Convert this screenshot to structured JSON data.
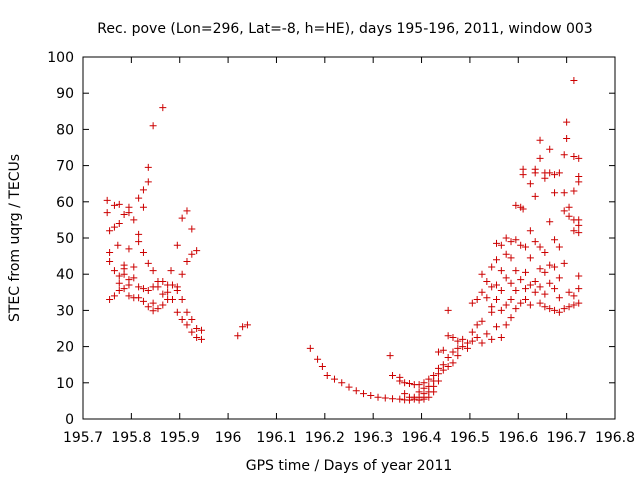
{
  "chart_data": {
    "type": "scatter",
    "title": "Rec. pove (Lon=296, Lat=-8, h=HE), days 195-196, 2011, window 003",
    "xlabel": "GPS time / Days of year 2011",
    "ylabel": "STEC from uqrg / TECUs",
    "xlim": [
      195.7,
      196.8
    ],
    "ylim": [
      0,
      100
    ],
    "xticks": [
      "195.7",
      "195.8",
      "195.9",
      "196",
      "196.1",
      "196.2",
      "196.3",
      "196.4",
      "196.5",
      "196.6",
      "196.7",
      "196.8"
    ],
    "xtick_values": [
      195.7,
      195.8,
      195.9,
      196.0,
      196.1,
      196.2,
      196.3,
      196.4,
      196.5,
      196.6,
      196.7,
      196.8
    ],
    "yticks": [
      "0",
      "10",
      "20",
      "30",
      "40",
      "50",
      "60",
      "70",
      "80",
      "90",
      "100"
    ],
    "ytick_values": [
      0,
      10,
      20,
      30,
      40,
      50,
      60,
      70,
      80,
      90,
      100
    ],
    "marker": "+",
    "color": "#cc0000",
    "series": [
      {
        "name": "STEC",
        "points": [
          [
            195.75,
            60.4
          ],
          [
            195.75,
            57.0
          ],
          [
            195.755,
            52.0
          ],
          [
            195.755,
            46.0
          ],
          [
            195.755,
            43.5
          ],
          [
            195.755,
            33.0
          ],
          [
            195.765,
            59.0
          ],
          [
            195.765,
            53.0
          ],
          [
            195.765,
            41.0
          ],
          [
            195.765,
            34.0
          ],
          [
            195.772,
            48.0
          ],
          [
            195.775,
            59.3
          ],
          [
            195.775,
            54.0
          ],
          [
            195.775,
            39.5
          ],
          [
            195.775,
            37.5
          ],
          [
            195.775,
            35.5
          ],
          [
            195.785,
            56.5
          ],
          [
            195.785,
            42.5
          ],
          [
            195.785,
            41.5
          ],
          [
            195.785,
            40.0
          ],
          [
            195.785,
            36.0
          ],
          [
            195.795,
            58.5
          ],
          [
            195.795,
            57.0
          ],
          [
            195.795,
            47.0
          ],
          [
            195.795,
            38.5
          ],
          [
            195.795,
            37.0
          ],
          [
            195.795,
            34.0
          ],
          [
            195.805,
            55.0
          ],
          [
            195.805,
            42.0
          ],
          [
            195.805,
            39.0
          ],
          [
            195.805,
            33.5
          ],
          [
            195.815,
            61.0
          ],
          [
            195.815,
            51.0
          ],
          [
            195.815,
            49.0
          ],
          [
            195.815,
            36.5
          ],
          [
            195.815,
            33.5
          ],
          [
            195.825,
            63.3
          ],
          [
            195.825,
            58.5
          ],
          [
            195.825,
            46.0
          ],
          [
            195.825,
            36.0
          ],
          [
            195.825,
            32.5
          ],
          [
            195.835,
            69.5
          ],
          [
            195.835,
            65.5
          ],
          [
            195.835,
            43.0
          ],
          [
            195.835,
            35.5
          ],
          [
            195.835,
            31.0
          ],
          [
            195.845,
            81.0
          ],
          [
            195.845,
            41.0
          ],
          [
            195.845,
            36.5
          ],
          [
            195.845,
            32.0
          ],
          [
            195.845,
            29.9
          ],
          [
            195.855,
            38.0
          ],
          [
            195.855,
            36.5
          ],
          [
            195.855,
            30.5
          ],
          [
            195.865,
            86.0
          ],
          [
            195.865,
            38.0
          ],
          [
            195.865,
            34.5
          ],
          [
            195.865,
            31.5
          ],
          [
            195.875,
            37.0
          ],
          [
            195.875,
            35.0
          ],
          [
            195.875,
            33.0
          ],
          [
            195.882,
            41.0
          ],
          [
            195.885,
            37.0
          ],
          [
            195.885,
            33.0
          ],
          [
            195.895,
            48.0
          ],
          [
            195.895,
            36.5
          ],
          [
            195.895,
            35.5
          ],
          [
            195.895,
            29.5
          ],
          [
            195.905,
            55.5
          ],
          [
            195.905,
            40.0
          ],
          [
            195.905,
            33.0
          ],
          [
            195.905,
            27.5
          ],
          [
            195.915,
            57.5
          ],
          [
            195.915,
            43.5
          ],
          [
            195.915,
            29.5
          ],
          [
            195.915,
            26.0
          ],
          [
            195.925,
            52.5
          ],
          [
            195.925,
            45.5
          ],
          [
            195.925,
            27.5
          ],
          [
            195.925,
            24.0
          ],
          [
            195.935,
            46.5
          ],
          [
            195.935,
            25.0
          ],
          [
            195.935,
            22.5
          ],
          [
            195.945,
            24.5
          ],
          [
            195.945,
            22.0
          ],
          [
            196.02,
            23.0
          ],
          [
            196.03,
            25.5
          ],
          [
            196.04,
            26.0
          ],
          [
            196.17,
            19.5
          ],
          [
            196.185,
            16.5
          ],
          [
            196.195,
            14.5
          ],
          [
            196.205,
            12.0
          ],
          [
            196.22,
            11.0
          ],
          [
            196.235,
            10.0
          ],
          [
            196.25,
            8.8
          ],
          [
            196.265,
            7.8
          ],
          [
            196.28,
            7.0
          ],
          [
            196.295,
            6.5
          ],
          [
            196.31,
            6.0
          ],
          [
            196.325,
            5.8
          ],
          [
            196.34,
            5.6
          ],
          [
            196.335,
            17.5
          ],
          [
            196.34,
            12.0
          ],
          [
            196.355,
            11.5
          ],
          [
            196.355,
            10.5
          ],
          [
            196.355,
            5.5
          ],
          [
            196.365,
            10.0
          ],
          [
            196.365,
            7.0
          ],
          [
            196.365,
            5.3
          ],
          [
            196.375,
            9.8
          ],
          [
            196.375,
            6.0
          ],
          [
            196.375,
            5.2
          ],
          [
            196.385,
            9.5
          ],
          [
            196.385,
            6.0
          ],
          [
            196.385,
            5.5
          ],
          [
            196.395,
            9.5
          ],
          [
            196.395,
            7.5
          ],
          [
            196.395,
            6.0
          ],
          [
            196.395,
            5.2
          ],
          [
            196.405,
            10.0
          ],
          [
            196.405,
            8.5
          ],
          [
            196.405,
            7.0
          ],
          [
            196.405,
            6.0
          ],
          [
            196.405,
            5.5
          ],
          [
            196.415,
            11.0
          ],
          [
            196.415,
            9.0
          ],
          [
            196.415,
            7.5
          ],
          [
            196.415,
            6.0
          ],
          [
            196.425,
            12.0
          ],
          [
            196.425,
            10.5
          ],
          [
            196.425,
            9.0
          ],
          [
            196.425,
            7.5
          ],
          [
            196.435,
            18.5
          ],
          [
            196.435,
            14.0
          ],
          [
            196.435,
            12.5
          ],
          [
            196.435,
            10.5
          ],
          [
            196.445,
            19.0
          ],
          [
            196.445,
            15.0
          ],
          [
            196.445,
            13.5
          ],
          [
            196.455,
            30.0
          ],
          [
            196.455,
            23.0
          ],
          [
            196.455,
            17.0
          ],
          [
            196.455,
            14.5
          ],
          [
            196.465,
            22.5
          ],
          [
            196.465,
            18.5
          ],
          [
            196.465,
            15.5
          ],
          [
            196.475,
            21.5
          ],
          [
            196.475,
            19.5
          ],
          [
            196.475,
            17.5
          ],
          [
            196.485,
            22.0
          ],
          [
            196.485,
            20.0
          ],
          [
            196.495,
            21.0
          ],
          [
            196.495,
            19.5
          ],
          [
            196.505,
            32.0
          ],
          [
            196.505,
            24.0
          ],
          [
            196.505,
            21.5
          ],
          [
            196.515,
            33.0
          ],
          [
            196.515,
            26.0
          ],
          [
            196.515,
            22.5
          ],
          [
            196.525,
            40.0
          ],
          [
            196.525,
            35.0
          ],
          [
            196.525,
            27.0
          ],
          [
            196.525,
            21.0
          ],
          [
            196.535,
            38.0
          ],
          [
            196.535,
            33.5
          ],
          [
            196.535,
            23.5
          ],
          [
            196.545,
            42.0
          ],
          [
            196.545,
            36.5
          ],
          [
            196.545,
            31.0
          ],
          [
            196.545,
            29.5
          ],
          [
            196.545,
            22.0
          ],
          [
            196.555,
            48.5
          ],
          [
            196.555,
            44.0
          ],
          [
            196.555,
            37.0
          ],
          [
            196.555,
            33.0
          ],
          [
            196.555,
            25.5
          ],
          [
            196.565,
            48.0
          ],
          [
            196.565,
            41.0
          ],
          [
            196.565,
            35.5
          ],
          [
            196.565,
            30.0
          ],
          [
            196.565,
            22.5
          ],
          [
            196.575,
            50.0
          ],
          [
            196.575,
            45.5
          ],
          [
            196.575,
            39.0
          ],
          [
            196.575,
            31.5
          ],
          [
            196.575,
            26.0
          ],
          [
            196.585,
            49.0
          ],
          [
            196.585,
            44.5
          ],
          [
            196.585,
            37.5
          ],
          [
            196.585,
            33.0
          ],
          [
            196.585,
            28.0
          ],
          [
            196.595,
            59.0
          ],
          [
            196.595,
            49.5
          ],
          [
            196.595,
            41.0
          ],
          [
            196.595,
            35.5
          ],
          [
            196.595,
            30.5
          ],
          [
            196.605,
            58.5
          ],
          [
            196.605,
            48.0
          ],
          [
            196.605,
            38.5
          ],
          [
            196.605,
            32.0
          ],
          [
            196.61,
            69.0
          ],
          [
            196.61,
            67.5
          ],
          [
            196.61,
            58.0
          ],
          [
            196.615,
            47.5
          ],
          [
            196.615,
            40.5
          ],
          [
            196.615,
            36.0
          ],
          [
            196.615,
            33.0
          ],
          [
            196.625,
            65.0
          ],
          [
            196.625,
            52.0
          ],
          [
            196.625,
            44.5
          ],
          [
            196.625,
            37.0
          ],
          [
            196.625,
            31.5
          ],
          [
            196.635,
            69.0
          ],
          [
            196.635,
            68.0
          ],
          [
            196.635,
            61.5
          ],
          [
            196.635,
            49.0
          ],
          [
            196.635,
            38.0
          ],
          [
            196.635,
            35.0
          ],
          [
            196.645,
            77.0
          ],
          [
            196.645,
            72.0
          ],
          [
            196.645,
            47.5
          ],
          [
            196.645,
            41.5
          ],
          [
            196.645,
            36.5
          ],
          [
            196.645,
            32.0
          ],
          [
            196.655,
            68.0
          ],
          [
            196.655,
            66.5
          ],
          [
            196.655,
            46.0
          ],
          [
            196.655,
            40.5
          ],
          [
            196.655,
            34.5
          ],
          [
            196.655,
            31.0
          ],
          [
            196.665,
            74.5
          ],
          [
            196.665,
            68.0
          ],
          [
            196.665,
            54.5
          ],
          [
            196.665,
            42.5
          ],
          [
            196.665,
            37.5
          ],
          [
            196.665,
            30.5
          ],
          [
            196.675,
            67.5
          ],
          [
            196.675,
            62.5
          ],
          [
            196.675,
            49.5
          ],
          [
            196.675,
            42.0
          ],
          [
            196.675,
            36.0
          ],
          [
            196.675,
            30.0
          ],
          [
            196.685,
            68.0
          ],
          [
            196.685,
            47.5
          ],
          [
            196.685,
            39.0
          ],
          [
            196.685,
            33.5
          ],
          [
            196.685,
            29.5
          ],
          [
            196.695,
            73.0
          ],
          [
            196.695,
            62.5
          ],
          [
            196.695,
            57.5
          ],
          [
            196.695,
            43.0
          ],
          [
            196.695,
            30.5
          ],
          [
            196.7,
            82.0
          ],
          [
            196.7,
            77.5
          ],
          [
            196.705,
            58.5
          ],
          [
            196.705,
            56.0
          ],
          [
            196.705,
            35.0
          ],
          [
            196.705,
            31.0
          ],
          [
            196.715,
            93.5
          ],
          [
            196.715,
            72.5
          ],
          [
            196.715,
            63.0
          ],
          [
            196.715,
            55.0
          ],
          [
            196.715,
            52.0
          ],
          [
            196.715,
            34.0
          ],
          [
            196.715,
            31.5
          ],
          [
            196.725,
            72.0
          ],
          [
            196.725,
            67.0
          ],
          [
            196.725,
            65.5
          ],
          [
            196.725,
            55.0
          ],
          [
            196.725,
            53.5
          ],
          [
            196.725,
            51.5
          ],
          [
            196.725,
            39.5
          ],
          [
            196.725,
            36.0
          ],
          [
            196.725,
            32.0
          ]
        ]
      }
    ]
  }
}
